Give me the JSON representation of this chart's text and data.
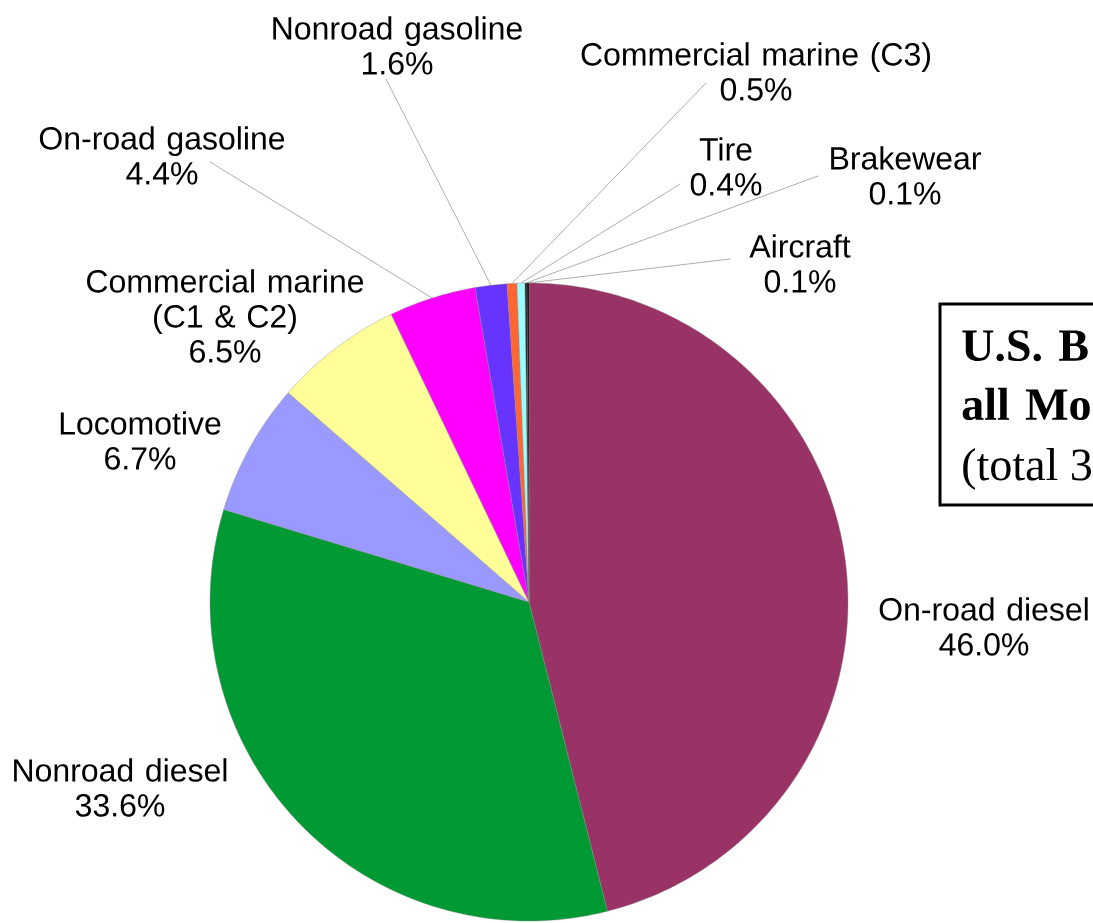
{
  "chart_data": {
    "type": "pie",
    "title": "U.S. B all Mo",
    "subtitle": "(total 3",
    "categories": [
      "On-road diesel",
      "Nonroad diesel",
      "Locomotive",
      "Commercial marine (C1 & C2)",
      "On-road gasoline",
      "Nonroad gasoline",
      "Commercial marine (C3)",
      "Tire",
      "Brakewear",
      "Aircraft"
    ],
    "values": [
      46.0,
      33.6,
      6.7,
      6.5,
      4.4,
      1.6,
      0.5,
      0.4,
      0.1,
      0.1
    ],
    "value_labels": [
      "46.0%",
      "33.6%",
      "6.7%",
      "6.5%",
      "4.4%",
      "1.6%",
      "0.5%",
      "0.4%",
      "0.1%",
      "0.1%"
    ],
    "colors": [
      "#993366",
      "#009933",
      "#9999ff",
      "#ffff99",
      "#ff00ff",
      "#6633ff",
      "#ff6633",
      "#99ffff",
      "#1a1a1a",
      "#000000"
    ]
  }
}
